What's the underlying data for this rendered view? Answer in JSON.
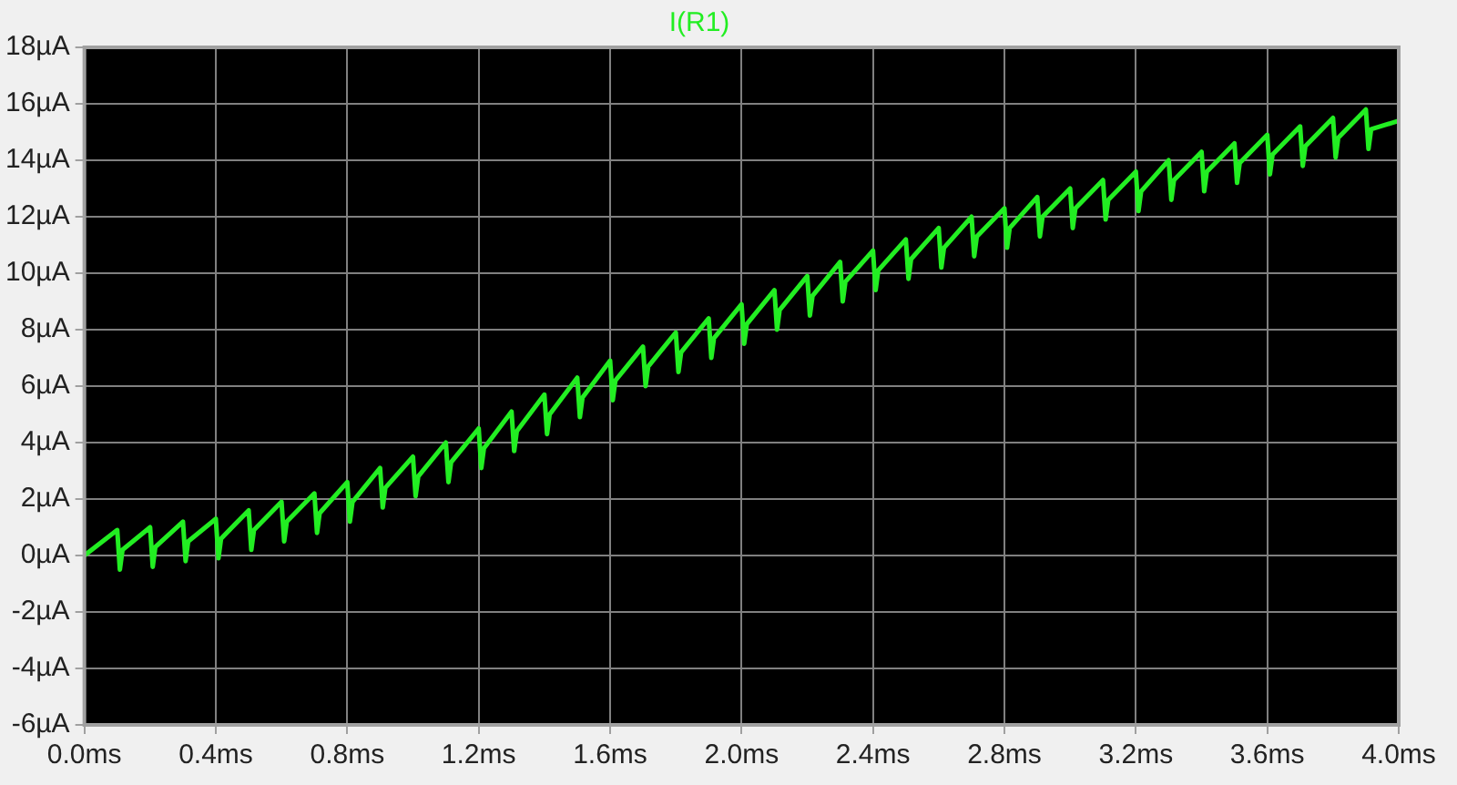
{
  "chart_data": {
    "type": "line",
    "title": "I(R1)",
    "x": [
      0,
      0.1,
      0.108,
      0.116,
      0.2,
      0.208,
      0.216,
      0.3,
      0.308,
      0.316,
      0.4,
      0.408,
      0.416,
      0.5,
      0.508,
      0.516,
      0.6,
      0.608,
      0.616,
      0.7,
      0.708,
      0.716,
      0.8,
      0.808,
      0.816,
      0.9,
      0.908,
      0.916,
      1.0,
      1.008,
      1.016,
      1.1,
      1.108,
      1.116,
      1.2,
      1.208,
      1.216,
      1.3,
      1.308,
      1.316,
      1.4,
      1.408,
      1.416,
      1.5,
      1.508,
      1.516,
      1.6,
      1.608,
      1.616,
      1.7,
      1.708,
      1.716,
      1.8,
      1.808,
      1.816,
      1.9,
      1.908,
      1.916,
      2.0,
      2.008,
      2.016,
      2.1,
      2.108,
      2.116,
      2.2,
      2.208,
      2.216,
      2.3,
      2.308,
      2.316,
      2.4,
      2.408,
      2.416,
      2.5,
      2.508,
      2.516,
      2.6,
      2.608,
      2.616,
      2.7,
      2.708,
      2.716,
      2.8,
      2.808,
      2.816,
      2.9,
      2.908,
      2.916,
      3.0,
      3.008,
      3.016,
      3.1,
      3.108,
      3.116,
      3.2,
      3.208,
      3.216,
      3.3,
      3.308,
      3.316,
      3.4,
      3.408,
      3.416,
      3.5,
      3.508,
      3.516,
      3.6,
      3.608,
      3.616,
      3.7,
      3.708,
      3.716,
      3.8,
      3.808,
      3.816,
      3.9,
      3.908,
      3.916,
      4.0
    ],
    "series": [
      {
        "color": "#22ee22",
        "values": [
          0,
          0.9,
          -0.5,
          0.2,
          1.0,
          -0.4,
          0.3,
          1.2,
          -0.2,
          0.5,
          1.3,
          -0.1,
          0.6,
          1.6,
          0.2,
          0.9,
          1.9,
          0.5,
          1.2,
          2.2,
          0.8,
          1.5,
          2.6,
          1.2,
          1.9,
          3.1,
          1.7,
          2.4,
          3.5,
          2.1,
          2.8,
          4.0,
          2.6,
          3.3,
          4.5,
          3.1,
          3.8,
          5.1,
          3.7,
          4.4,
          5.7,
          4.3,
          5.0,
          6.3,
          4.9,
          5.6,
          6.9,
          5.5,
          6.2,
          7.4,
          6.0,
          6.7,
          7.9,
          6.5,
          7.2,
          8.4,
          7.0,
          7.7,
          8.9,
          7.5,
          8.2,
          9.4,
          8.0,
          8.7,
          9.9,
          8.5,
          9.2,
          10.4,
          9.0,
          9.7,
          10.8,
          9.4,
          10.1,
          11.2,
          9.8,
          10.5,
          11.6,
          10.2,
          10.9,
          12.0,
          10.6,
          11.3,
          12.3,
          10.9,
          11.6,
          12.7,
          11.3,
          12.0,
          13.0,
          11.6,
          12.3,
          13.3,
          11.9,
          12.6,
          13.6,
          12.2,
          12.9,
          14.0,
          12.6,
          13.3,
          14.3,
          12.9,
          13.6,
          14.6,
          13.2,
          13.9,
          14.9,
          13.5,
          14.2,
          15.2,
          13.8,
          14.5,
          15.5,
          14.1,
          14.8,
          15.8,
          14.4,
          15.1,
          15.4
        ]
      }
    ],
    "xlim": [
      0,
      4
    ],
    "xticks": [
      {
        "value": 0,
        "label": "0.0ms"
      },
      {
        "value": 0.4,
        "label": "0.4ms"
      },
      {
        "value": 0.8,
        "label": "0.8ms"
      },
      {
        "value": 1.2,
        "label": "1.2ms"
      },
      {
        "value": 1.6,
        "label": "1.6ms"
      },
      {
        "value": 2.0,
        "label": "2.0ms"
      },
      {
        "value": 2.4,
        "label": "2.4ms"
      },
      {
        "value": 2.8,
        "label": "2.8ms"
      },
      {
        "value": 3.2,
        "label": "3.2ms"
      },
      {
        "value": 3.6,
        "label": "3.6ms"
      },
      {
        "value": 4.0,
        "label": "4.0ms"
      }
    ],
    "ylim": [
      -6,
      18
    ],
    "yticks": [
      {
        "value": -6,
        "label": "-6µA"
      },
      {
        "value": -4,
        "label": "-4µA"
      },
      {
        "value": -2,
        "label": "-2µA"
      },
      {
        "value": 0,
        "label": "0µA"
      },
      {
        "value": 2,
        "label": "2µA"
      },
      {
        "value": 4,
        "label": "4µA"
      },
      {
        "value": 6,
        "label": "6µA"
      },
      {
        "value": 8,
        "label": "8µA"
      },
      {
        "value": 10,
        "label": "10µA"
      },
      {
        "value": 12,
        "label": "12µA"
      },
      {
        "value": 14,
        "label": "14µA"
      },
      {
        "value": 16,
        "label": "16µA"
      },
      {
        "value": 18,
        "label": "18µA"
      }
    ],
    "grid": true,
    "line_style": "solid",
    "marker": "none",
    "legend": false
  }
}
